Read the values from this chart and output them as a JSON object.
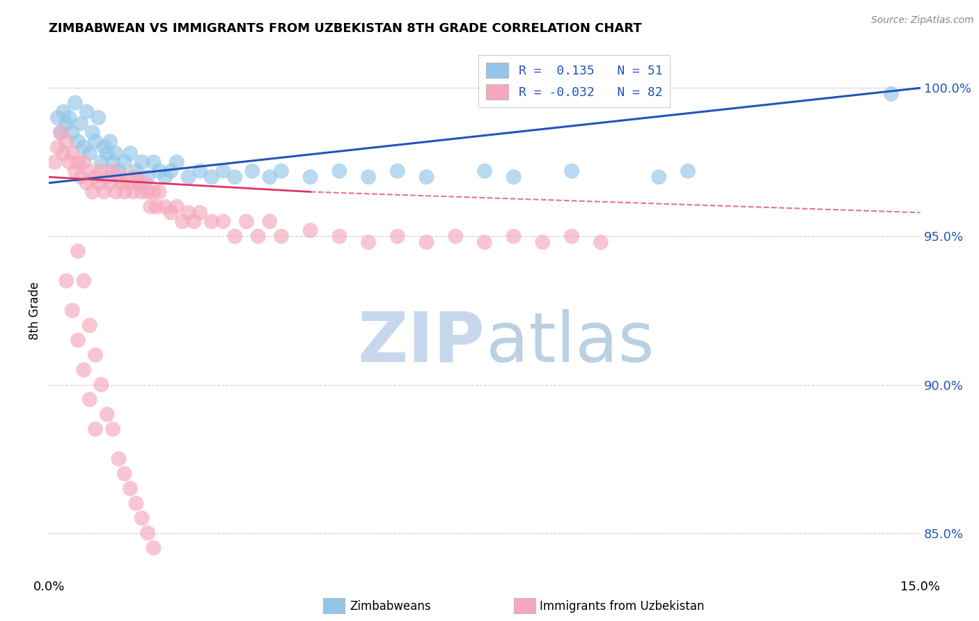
{
  "title": "ZIMBABWEAN VS IMMIGRANTS FROM UZBEKISTAN 8TH GRADE CORRELATION CHART",
  "source_text": "Source: ZipAtlas.com",
  "ylabel": "8th Grade",
  "xlim": [
    0.0,
    15.0
  ],
  "ylim": [
    83.5,
    101.5
  ],
  "yticks": [
    85.0,
    90.0,
    95.0,
    100.0
  ],
  "xtick_labels": [
    "0.0%",
    "15.0%"
  ],
  "ytick_labels": [
    "85.0%",
    "90.0%",
    "95.0%",
    "100.0%"
  ],
  "blue_color": "#92C5E8",
  "pink_color": "#F5A8BC",
  "blue_line_color": "#2255BB",
  "pink_line_color": "#DD3366",
  "legend_blue_label": "R =  0.135   N = 51",
  "legend_pink_label": "R = -0.032   N = 82",
  "watermark_zip_color": "#C8D8EC",
  "watermark_atlas_color": "#B0C8DC",
  "blue_scatter_x": [
    0.15,
    0.2,
    0.25,
    0.3,
    0.35,
    0.4,
    0.45,
    0.5,
    0.55,
    0.6,
    0.65,
    0.7,
    0.75,
    0.8,
    0.85,
    0.9,
    0.95,
    1.0,
    1.05,
    1.1,
    1.15,
    1.2,
    1.3,
    1.4,
    1.5,
    1.6,
    1.7,
    1.8,
    1.9,
    2.0,
    2.1,
    2.2,
    2.4,
    2.6,
    2.8,
    3.0,
    3.2,
    3.5,
    3.8,
    4.0,
    4.5,
    5.0,
    5.5,
    6.0,
    6.5,
    7.5,
    8.0,
    9.0,
    10.5,
    11.0,
    14.5
  ],
  "blue_scatter_y": [
    99.0,
    98.5,
    99.2,
    98.8,
    99.0,
    98.5,
    99.5,
    98.2,
    98.8,
    98.0,
    99.2,
    97.8,
    98.5,
    98.2,
    99.0,
    97.5,
    98.0,
    97.8,
    98.2,
    97.5,
    97.8,
    97.2,
    97.5,
    97.8,
    97.2,
    97.5,
    97.0,
    97.5,
    97.2,
    97.0,
    97.2,
    97.5,
    97.0,
    97.2,
    97.0,
    97.2,
    97.0,
    97.2,
    97.0,
    97.2,
    97.0,
    97.2,
    97.0,
    97.2,
    97.0,
    97.2,
    97.0,
    97.2,
    97.0,
    97.2,
    99.8
  ],
  "pink_scatter_x": [
    0.1,
    0.15,
    0.2,
    0.25,
    0.3,
    0.35,
    0.4,
    0.45,
    0.5,
    0.55,
    0.6,
    0.65,
    0.7,
    0.75,
    0.8,
    0.85,
    0.9,
    0.95,
    1.0,
    1.05,
    1.1,
    1.15,
    1.2,
    1.25,
    1.3,
    1.35,
    1.4,
    1.45,
    1.5,
    1.55,
    1.6,
    1.65,
    1.7,
    1.75,
    1.8,
    1.85,
    1.9,
    2.0,
    2.1,
    2.2,
    2.3,
    2.4,
    2.5,
    2.6,
    2.8,
    3.0,
    3.2,
    3.4,
    3.6,
    3.8,
    4.0,
    4.5,
    5.0,
    5.5,
    6.0,
    6.5,
    7.0,
    7.5,
    8.0,
    8.5,
    9.0,
    9.5,
    0.3,
    0.4,
    0.5,
    0.6,
    0.7,
    0.8,
    0.5,
    0.6,
    0.7,
    0.8,
    0.9,
    1.0,
    1.1,
    1.2,
    1.3,
    1.4,
    1.5,
    1.6,
    1.7,
    1.8
  ],
  "pink_scatter_y": [
    97.5,
    98.0,
    98.5,
    97.8,
    98.2,
    97.5,
    97.8,
    97.2,
    97.5,
    97.0,
    97.5,
    96.8,
    97.2,
    96.5,
    97.0,
    96.8,
    97.2,
    96.5,
    97.0,
    96.8,
    97.2,
    96.5,
    97.0,
    96.8,
    96.5,
    97.0,
    96.8,
    96.5,
    97.0,
    96.8,
    96.5,
    96.8,
    96.5,
    96.0,
    96.5,
    96.0,
    96.5,
    96.0,
    95.8,
    96.0,
    95.5,
    95.8,
    95.5,
    95.8,
    95.5,
    95.5,
    95.0,
    95.5,
    95.0,
    95.5,
    95.0,
    95.2,
    95.0,
    94.8,
    95.0,
    94.8,
    95.0,
    94.8,
    95.0,
    94.8,
    95.0,
    94.8,
    93.5,
    92.5,
    91.5,
    90.5,
    89.5,
    88.5,
    94.5,
    93.5,
    92.0,
    91.0,
    90.0,
    89.0,
    88.5,
    87.5,
    87.0,
    86.5,
    86.0,
    85.5,
    85.0,
    84.5
  ],
  "blue_line_x0": 0.0,
  "blue_line_y0": 96.8,
  "blue_line_x1": 15.0,
  "blue_line_y1": 100.0,
  "pink_line_solid_x0": 0.0,
  "pink_line_solid_y0": 97.0,
  "pink_line_solid_x1": 4.5,
  "pink_line_solid_y1": 96.5,
  "pink_line_dash_x0": 4.5,
  "pink_line_dash_y0": 96.5,
  "pink_line_dash_x1": 15.0,
  "pink_line_dash_y1": 95.8
}
